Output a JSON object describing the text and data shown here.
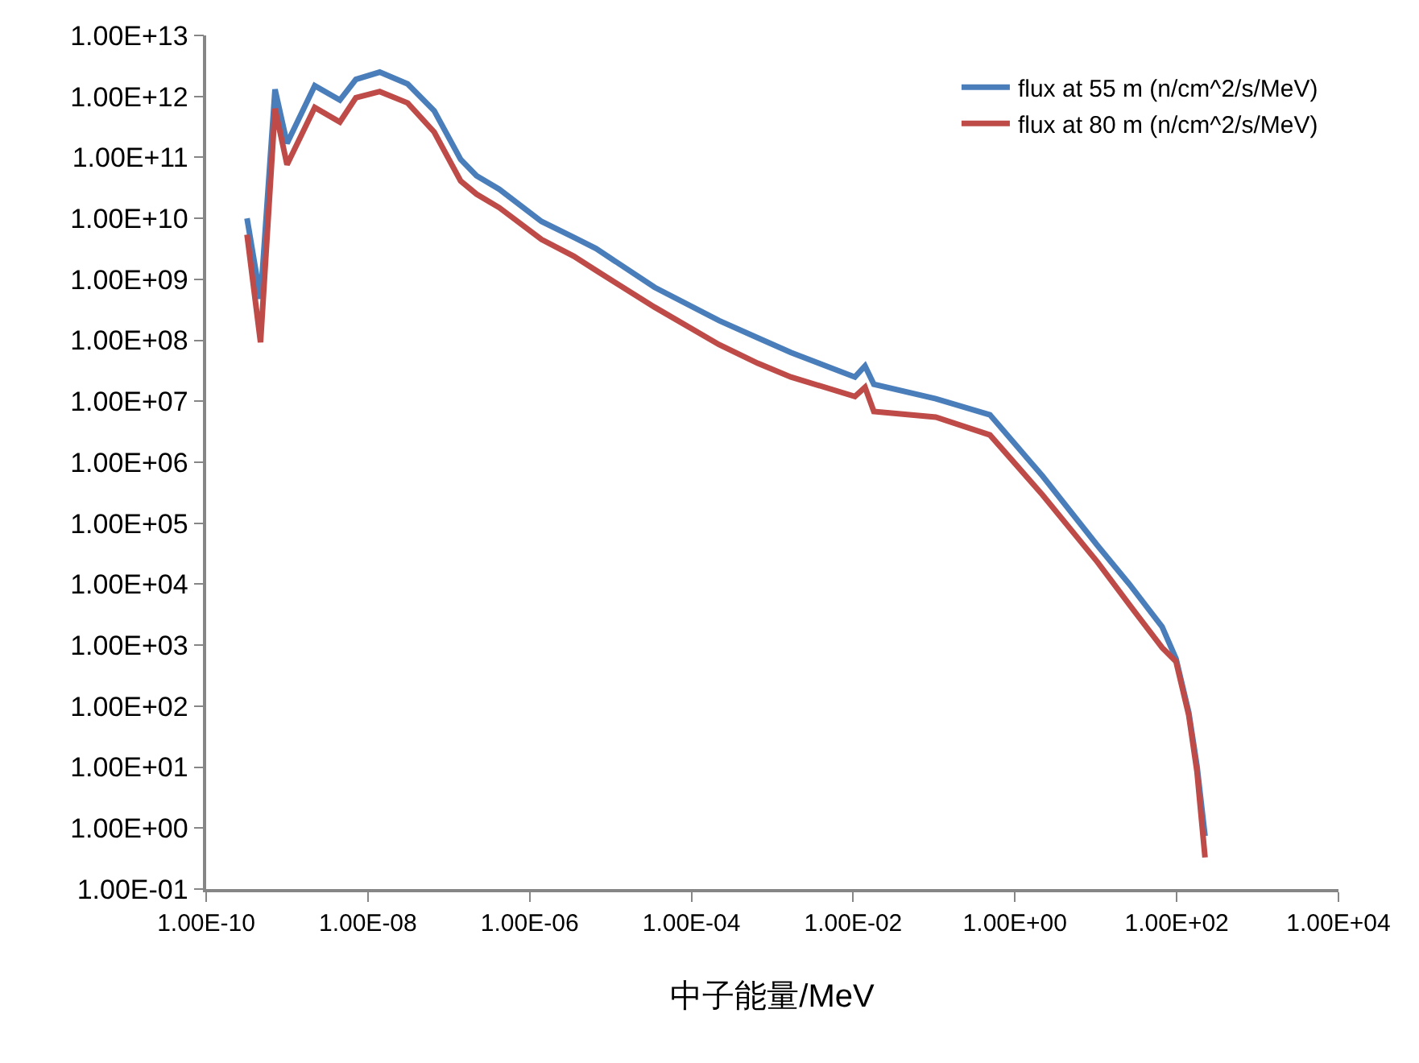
{
  "chart_data": {
    "type": "line",
    "xlabel": "中子能量/MeV",
    "x": [
      3.2e-10,
      4.7e-10,
      7.1e-10,
      1e-09,
      2.2e-09,
      4.5e-09,
      7.1e-09,
      1.4e-08,
      3.1e-08,
      6.6e-08,
      1.4e-07,
      2.2e-07,
      4.2e-07,
      1.4e-06,
      3.5e-06,
      6.6e-06,
      3.5e-05,
      0.00022,
      0.00066,
      0.0017,
      0.0105,
      0.014,
      0.018,
      0.105,
      0.49,
      2.2,
      10.5,
      26,
      66,
      98,
      141,
      178,
      224
    ],
    "series": [
      {
        "name": "flux at 55 m (n/cm^2/s/MeV)",
        "color": "#4a7ebb",
        "values": [
          10000000000.0,
          480000000.0,
          1300000000000.0,
          170000000000.0,
          1500000000000.0,
          870000000000.0,
          1900000000000.0,
          2500000000000.0,
          1600000000000.0,
          580000000000.0,
          93000000000.0,
          50000000000.0,
          30000000000.0,
          8900000000.0,
          4900000000.0,
          3200000000.0,
          740000000.0,
          210000000.0,
          110000000.0,
          63000000.0,
          25000000.0,
          38000000.0,
          19000000.0,
          11000000.0,
          6000000.0,
          590000.0,
          43000.0,
          10000.0,
          2000.0,
          600.0,
          79,
          10.5,
          0.74
        ]
      },
      {
        "name": "flux at 80 m (n/cm^2/s/MeV)",
        "color": "#be4b48",
        "values": [
          5400000000.0,
          93000000.0,
          630000000000.0,
          76000000000.0,
          660000000000.0,
          380000000000.0,
          950000000000.0,
          1200000000000.0,
          780000000000.0,
          260000000000.0,
          41000000000.0,
          25000000000.0,
          15000000000.0,
          4500000000.0,
          2400000000.0,
          1400000000.0,
          350000000.0,
          85000000.0,
          42000000.0,
          25000000.0,
          12000000.0,
          17000000.0,
          6800000.0,
          5500000.0,
          2800000.0,
          290000.0,
          23000.0,
          4600.0,
          910.0,
          540.0,
          71,
          8.5,
          0.33
        ]
      }
    ],
    "log": "xy",
    "xlim": [
      1e-10,
      10000.0
    ],
    "ylim": [
      0.1,
      10000000000000.0
    ],
    "xticks": [
      {
        "value": 1e-10,
        "label": "1.00E-10"
      },
      {
        "value": 1e-08,
        "label": "1.00E-08"
      },
      {
        "value": 1e-06,
        "label": "1.00E-06"
      },
      {
        "value": 0.0001,
        "label": "1.00E-04"
      },
      {
        "value": 0.01,
        "label": "1.00E-02"
      },
      {
        "value": 1,
        "label": "1.00E+00"
      },
      {
        "value": 100,
        "label": "1.00E+02"
      },
      {
        "value": 10000.0,
        "label": "1.00E+04"
      }
    ],
    "yticks": [
      {
        "value": 0.1,
        "label": "1.00E-01"
      },
      {
        "value": 1,
        "label": "1.00E+00"
      },
      {
        "value": 10,
        "label": "1.00E+01"
      },
      {
        "value": 100,
        "label": "1.00E+02"
      },
      {
        "value": 1000.0,
        "label": "1.00E+03"
      },
      {
        "value": 10000.0,
        "label": "1.00E+04"
      },
      {
        "value": 100000.0,
        "label": "1.00E+05"
      },
      {
        "value": 1000000.0,
        "label": "1.00E+06"
      },
      {
        "value": 10000000.0,
        "label": "1.00E+07"
      },
      {
        "value": 100000000.0,
        "label": "1.00E+08"
      },
      {
        "value": 1000000000.0,
        "label": "1.00E+09"
      },
      {
        "value": 10000000000.0,
        "label": "1.00E+10"
      },
      {
        "value": 100000000000.0,
        "label": "1.00E+11"
      },
      {
        "value": 1000000000000.0,
        "label": "1.00E+12"
      },
      {
        "value": 10000000000000.0,
        "label": "1.00E+13"
      }
    ],
    "grid": false,
    "legend": "top right",
    "marker": "none",
    "line_style": "solid"
  }
}
